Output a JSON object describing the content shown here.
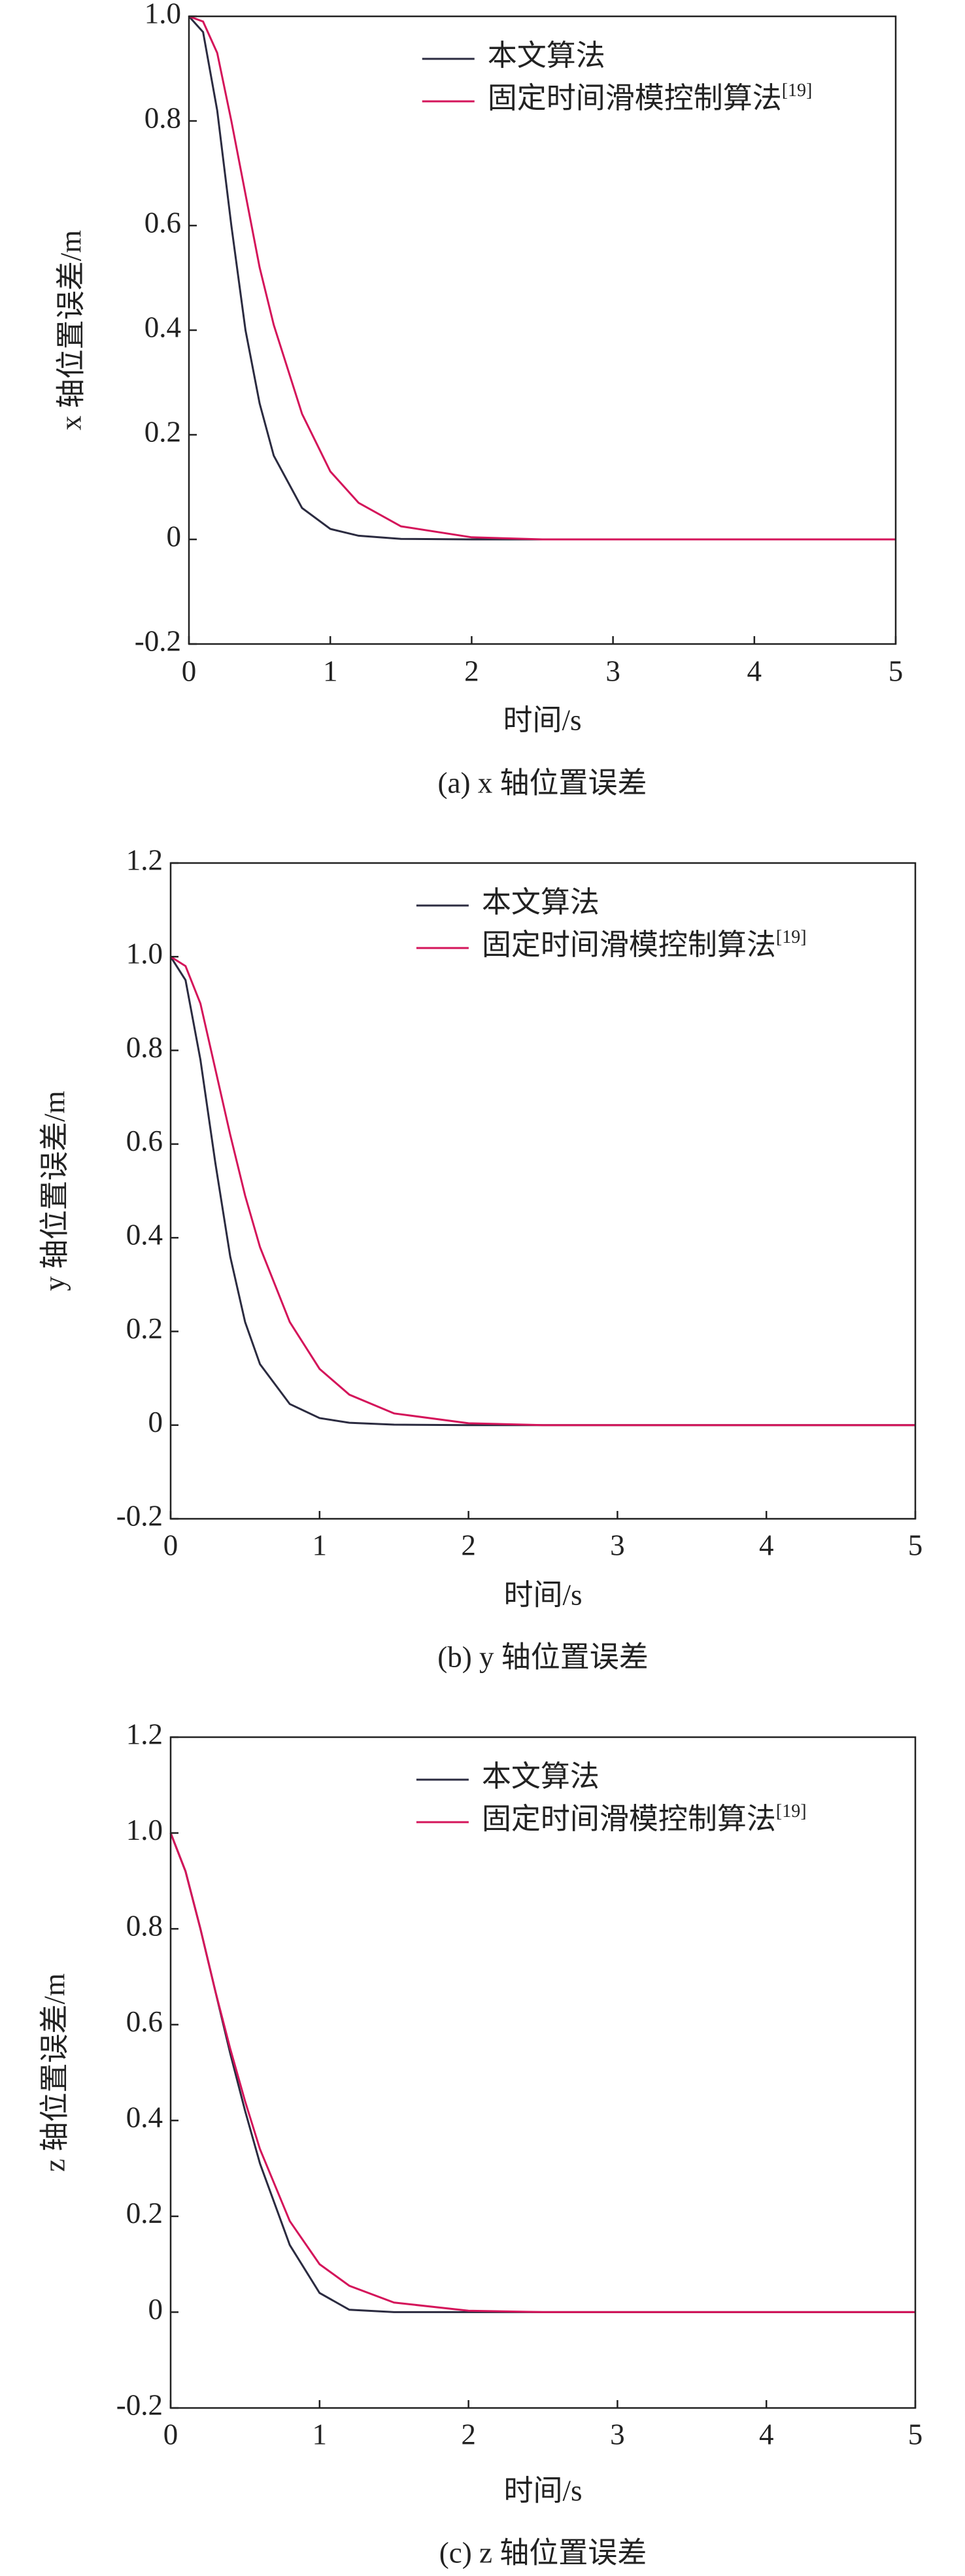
{
  "chart_data": [
    {
      "type": "line",
      "caption": "(a) x 轴位置误差",
      "xlabel": "时间/s",
      "ylabel": "x 轴位置误差/m",
      "x": [
        0,
        0.1,
        0.2,
        0.3,
        0.4,
        0.5,
        0.6,
        0.8,
        1.0,
        1.2,
        1.5,
        2.0,
        2.5,
        3,
        4,
        5
      ],
      "series": [
        {
          "name": "本文算法",
          "color": "#2b2b40",
          "values": [
            1,
            0.97,
            0.82,
            0.6,
            0.4,
            0.26,
            0.16,
            0.06,
            0.02,
            0.007,
            0.001,
            0,
            0,
            0,
            0,
            0
          ]
        },
        {
          "name": "固定时间滑模控制算法",
          "legend_ref": "[19]",
          "color": "#d4145a",
          "values": [
            1,
            0.99,
            0.93,
            0.8,
            0.66,
            0.52,
            0.41,
            0.24,
            0.13,
            0.07,
            0.025,
            0.004,
            0,
            0,
            0,
            0
          ]
        }
      ],
      "xlim": [
        0,
        5
      ],
      "xticks": [
        0,
        1,
        2,
        3,
        4,
        5
      ],
      "ylim": [
        -0.2,
        1
      ],
      "yticks": [
        -0.2,
        0,
        0.2,
        0.4,
        0.6,
        0.8,
        {
          "value": 1,
          "label": "1.0"
        }
      ],
      "legend": "upper right"
    },
    {
      "type": "line",
      "caption": "(b) y 轴位置误差",
      "xlabel": "时间/s",
      "ylabel": "y 轴位置误差/m",
      "x": [
        0,
        0.1,
        0.2,
        0.3,
        0.4,
        0.5,
        0.6,
        0.8,
        1.0,
        1.2,
        1.5,
        2.0,
        2.5,
        3,
        4,
        5
      ],
      "series": [
        {
          "name": "本文算法",
          "color": "#2b2b40",
          "values": [
            1,
            0.95,
            0.78,
            0.56,
            0.36,
            0.22,
            0.13,
            0.045,
            0.015,
            0.005,
            0.001,
            0,
            0,
            0,
            0,
            0
          ]
        },
        {
          "name": "固定时间滑模控制算法",
          "legend_ref": "[19]",
          "color": "#d4145a",
          "values": [
            1,
            0.98,
            0.9,
            0.76,
            0.62,
            0.49,
            0.38,
            0.22,
            0.12,
            0.065,
            0.025,
            0.004,
            0,
            0,
            0,
            0
          ]
        }
      ],
      "xlim": [
        0,
        5
      ],
      "xticks": [
        0,
        1,
        2,
        3,
        4,
        5
      ],
      "ylim": [
        -0.2,
        1.2
      ],
      "yticks": [
        -0.2,
        0,
        0.2,
        0.4,
        0.6,
        0.8,
        {
          "value": 1,
          "label": "1.0"
        },
        1.2
      ],
      "legend": "upper right"
    },
    {
      "type": "line",
      "caption": "(c) z 轴位置误差",
      "xlabel": "时间/s",
      "ylabel": "z 轴位置误差/m",
      "x": [
        0,
        0.1,
        0.2,
        0.3,
        0.4,
        0.5,
        0.6,
        0.8,
        1.0,
        1.2,
        1.5,
        2.0,
        2.5,
        3,
        4,
        5
      ],
      "series": [
        {
          "name": "本文算法",
          "color": "#2b2b40",
          "values": [
            1,
            0.92,
            0.8,
            0.67,
            0.54,
            0.42,
            0.31,
            0.14,
            0.04,
            0.005,
            0,
            0,
            0,
            0,
            0,
            0
          ]
        },
        {
          "name": "固定时间滑模控制算法",
          "legend_ref": "[19]",
          "color": "#d4145a",
          "values": [
            1,
            0.92,
            0.8,
            0.67,
            0.55,
            0.44,
            0.34,
            0.19,
            0.1,
            0.055,
            0.02,
            0.003,
            0,
            0,
            0,
            0
          ]
        }
      ],
      "xlim": [
        0,
        5
      ],
      "xticks": [
        0,
        1,
        2,
        3,
        4,
        5
      ],
      "ylim": [
        -0.2,
        1.2
      ],
      "yticks": [
        -0.2,
        0,
        0.2,
        0.4,
        0.6,
        0.8,
        {
          "value": 1,
          "label": "1.0"
        },
        1.2
      ],
      "legend": "upper right"
    }
  ]
}
